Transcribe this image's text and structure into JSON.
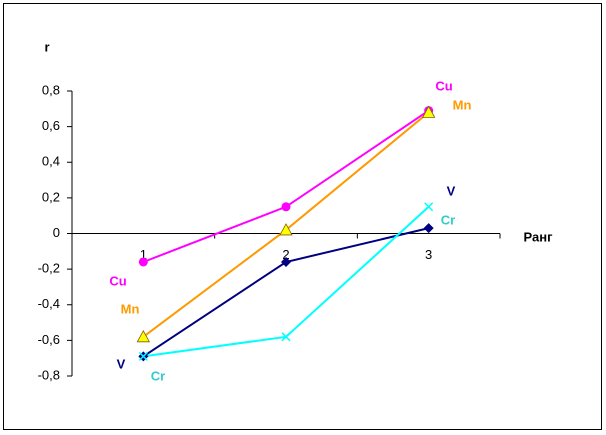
{
  "chart_data": {
    "type": "line",
    "y_label": "r",
    "x_label": "Ранг",
    "categories": [
      "1",
      "2",
      "3"
    ],
    "series": [
      {
        "name": "Cu",
        "color": "#ff00ff",
        "marker": "circle",
        "values": [
          -0.16,
          0.15,
          0.69
        ]
      },
      {
        "name": "Mn",
        "color": "#ff9900",
        "marker": "triangle",
        "values": [
          -0.58,
          0.02,
          0.68
        ]
      },
      {
        "name": "V",
        "color": "#000080",
        "marker": "diamond",
        "values": [
          -0.69,
          -0.16,
          0.03
        ]
      },
      {
        "name": "Cr",
        "color": "#00ffff",
        "marker": "cross",
        "values": [
          -0.69,
          -0.58,
          0.15
        ]
      }
    ],
    "ylim": [
      -0.8,
      0.8
    ],
    "yticks": [
      {
        "value": -0.8,
        "label": "-0,8"
      },
      {
        "value": -0.6,
        "label": "-0,6"
      },
      {
        "value": -0.4,
        "label": "-0,4"
      },
      {
        "value": -0.2,
        "label": "-0,2"
      },
      0,
      {
        "value": 0.2,
        "label": "0,2"
      },
      {
        "value": 0.4,
        "label": "0,4"
      },
      {
        "value": 0.6,
        "label": "0,6"
      },
      {
        "value": 0.8,
        "label": "0,8"
      }
    ]
  }
}
